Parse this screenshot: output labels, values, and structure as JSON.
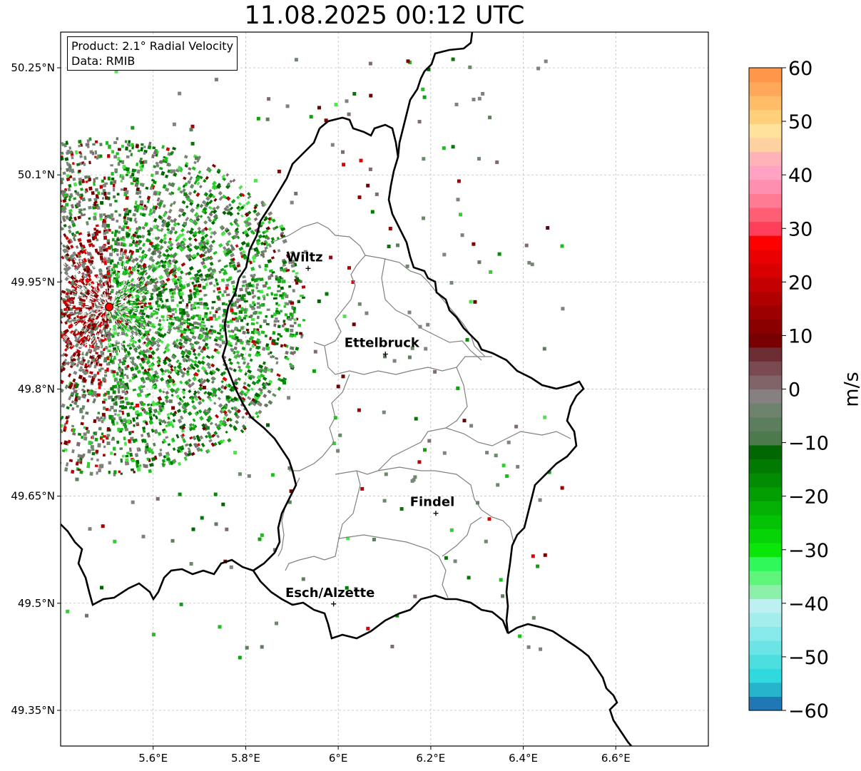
{
  "title": "11.08.2025 00:12 UTC",
  "info": {
    "product": "Product: 2.1° Radial Velocity",
    "data": "Data: RMIB"
  },
  "map": {
    "lon_range": [
      5.4,
      6.8
    ],
    "lat_range": [
      49.3,
      50.3
    ],
    "lon_ticks": [
      {
        "value": 5.6,
        "label": "5.6°E"
      },
      {
        "value": 5.8,
        "label": "5.8°E"
      },
      {
        "value": 6.0,
        "label": "6°E"
      },
      {
        "value": 6.2,
        "label": "6.2°E"
      },
      {
        "value": 6.4,
        "label": "6.4°E"
      },
      {
        "value": 6.6,
        "label": "6.6°E"
      }
    ],
    "lat_ticks": [
      {
        "value": 50.25,
        "label": "50.25°N"
      },
      {
        "value": 50.1,
        "label": "50.1°N"
      },
      {
        "value": 49.95,
        "label": "49.95°N"
      },
      {
        "value": 49.8,
        "label": "49.8°N"
      },
      {
        "value": 49.65,
        "label": "49.65°N"
      },
      {
        "value": 49.5,
        "label": "49.5°N"
      },
      {
        "value": 49.35,
        "label": "49.35°N"
      }
    ],
    "grid": true,
    "radar_site": {
      "lon": 5.505,
      "lat": 49.915
    },
    "cities": [
      {
        "name": "Wiltz",
        "lon": 5.935,
        "lat": 49.969
      },
      {
        "name": "Ettelbruck",
        "lon": 6.102,
        "lat": 49.849
      },
      {
        "name": "Findel",
        "lon": 6.211,
        "lat": 49.626
      },
      {
        "name": "Esch/Alzette",
        "lon": 5.99,
        "lat": 49.499
      }
    ]
  },
  "colorbar": {
    "label": "m/s",
    "range": [
      -60,
      60
    ],
    "ticks": [
      {
        "value": 60,
        "label": "60"
      },
      {
        "value": 50,
        "label": "50"
      },
      {
        "value": 40,
        "label": "40"
      },
      {
        "value": 30,
        "label": "30"
      },
      {
        "value": 20,
        "label": "20"
      },
      {
        "value": 10,
        "label": "10"
      },
      {
        "value": 0,
        "label": "0"
      },
      {
        "value": -10,
        "label": "−10"
      },
      {
        "value": -20,
        "label": "−20"
      },
      {
        "value": -30,
        "label": "−30"
      },
      {
        "value": -40,
        "label": "−40"
      },
      {
        "value": -50,
        "label": "−50"
      },
      {
        "value": -60,
        "label": "−60"
      }
    ],
    "colors": [
      "#1f78b4",
      "#26b3cc",
      "#2fd9de",
      "#4ddfe0",
      "#6ae4e4",
      "#86e9ea",
      "#a3eded",
      "#bdf1f1",
      "#8cf0aa",
      "#5ef57a",
      "#30f85a",
      "#0ae60a",
      "#06d406",
      "#04c204",
      "#03b003",
      "#029e02",
      "#028c02",
      "#027a02",
      "#016801",
      "#4c7a4c",
      "#5c7e5c",
      "#6e836e",
      "#868080",
      "#7f6468",
      "#7a4a50",
      "#6d2e33",
      "#790000",
      "#8a0000",
      "#9d0000",
      "#b00000",
      "#c40000",
      "#d80000",
      "#ea0000",
      "#ff0000",
      "#ff3f5a",
      "#ff5e74",
      "#ff7a92",
      "#ff8fb0",
      "#ffa2c4",
      "#ffb3b8",
      "#ffd0a0",
      "#ffe39a",
      "#ffd07a",
      "#ffbd6a",
      "#ffa85a",
      "#ff964a"
    ]
  },
  "colors": {
    "border_bold": "#000000",
    "border_thin": "#808080",
    "radar_site": "#ff0000"
  }
}
